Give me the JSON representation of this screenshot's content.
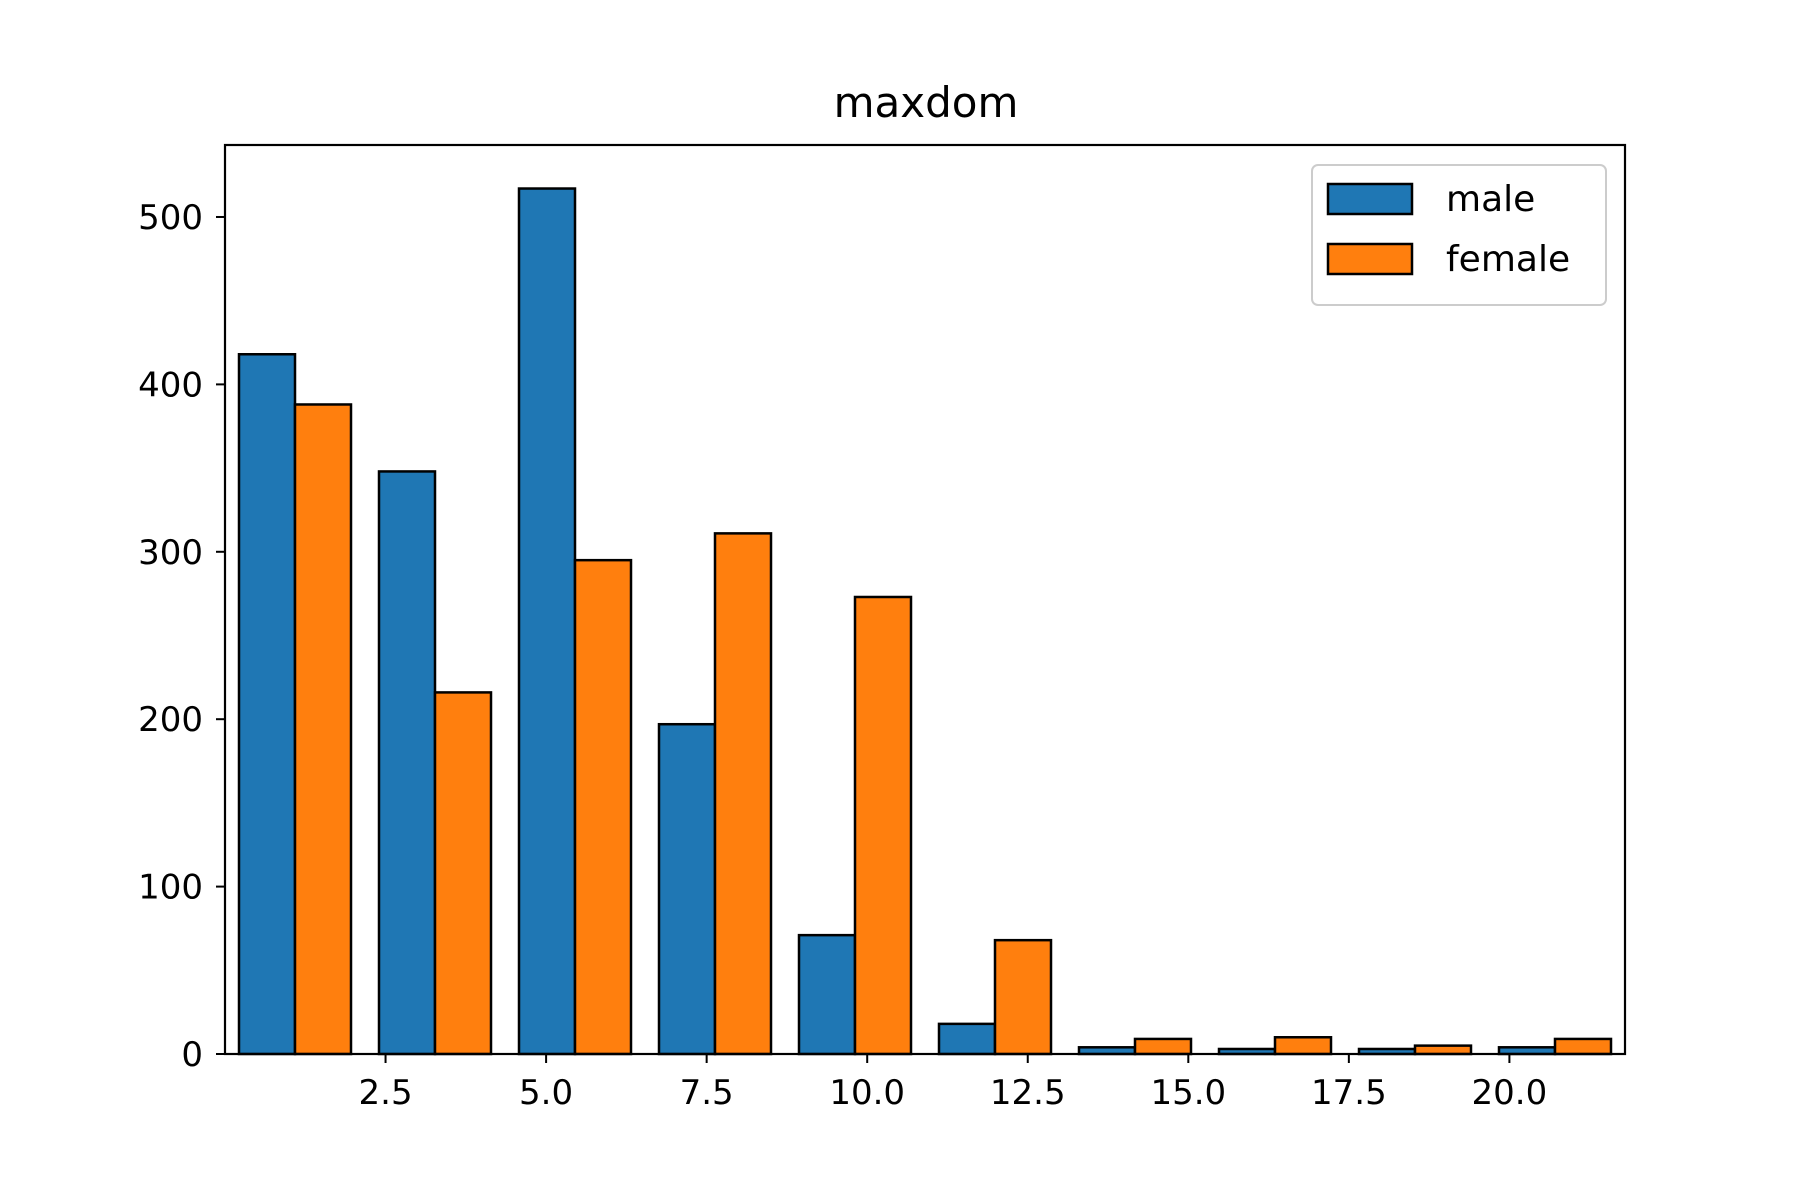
{
  "chart_data": {
    "type": "bar",
    "title": "maxdom",
    "xlabel": "",
    "ylabel": "",
    "xlim": [
      0.0,
      21.8
    ],
    "ylim": [
      0,
      543
    ],
    "x_ticks": [
      2.5,
      5.0,
      7.5,
      10.0,
      12.5,
      15.0,
      17.5,
      20.0
    ],
    "x_tick_labels": [
      "2.5",
      "5.0",
      "7.5",
      "10.0",
      "12.5",
      "15.0",
      "17.5",
      "20.0"
    ],
    "y_ticks": [
      0,
      100,
      200,
      300,
      400,
      500
    ],
    "y_tick_labels": [
      "0",
      "100",
      "200",
      "300",
      "400",
      "500"
    ],
    "bin_edges": [
      0.0,
      2.18,
      4.36,
      6.54,
      8.72,
      10.9,
      13.08,
      15.26,
      17.44,
      19.62,
      21.8
    ],
    "series": [
      {
        "name": "male",
        "color": "#1f77b4",
        "values": [
          418,
          348,
          517,
          197,
          71,
          18,
          4,
          3,
          3,
          4
        ]
      },
      {
        "name": "female",
        "color": "#ff7f0e",
        "values": [
          388,
          216,
          295,
          311,
          273,
          68,
          9,
          10,
          5,
          9
        ]
      }
    ],
    "bar_edge_color": "#000000",
    "grid": false,
    "legend": {
      "position": "top-right",
      "entries": [
        "male",
        "female"
      ]
    }
  }
}
